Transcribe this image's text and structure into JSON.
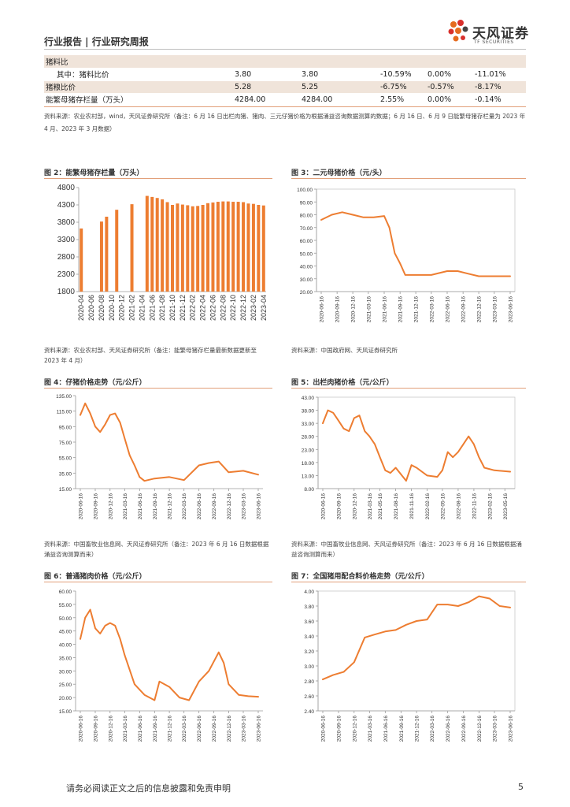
{
  "header": {
    "title": "行业报告 | 行业研究周报"
  },
  "logo": {
    "cn": "天风证券",
    "en": "TF SECURITIES",
    "colors": [
      "#e56b1f",
      "#d9302c",
      "#444444"
    ]
  },
  "table": {
    "rows": [
      [
        "猪料比",
        "",
        "",
        "",
        "",
        ""
      ],
      [
        "其中：猪料比价",
        "3.80",
        "3.80",
        "-10.59%",
        "0.00%",
        "-11.01%"
      ],
      [
        "猪粮比价",
        "5.28",
        "5.25",
        "-6.75%",
        "-0.57%",
        "-8.17%"
      ],
      [
        "能繁母猪存栏量（万头）",
        "4284.00",
        "4284.00",
        "2.55%",
        "0.00%",
        "-0.14%"
      ]
    ],
    "source": "资料来源：农业农村部，wind，天风证券研究所（备注：6 月 16 日出栏肉猪、猪肉、三元仔猪价格为根据涌益咨询数据测算的数据；6 月 16 日、6 月 9 日能繁母猪存栏量为 2023 年 4 月、2023 年 3 月数据）"
  },
  "figures": {
    "fig2": {
      "title": "图 2：能繁母猪存栏量（万头）",
      "source": "资料来源：农业农村部、天风证券研究所（备注：能繁母猪存栏量最新数据更新至 2023 年 4 月）"
    },
    "fig3": {
      "title": "图 3：二元母猪价格（元/头）",
      "source": "资料来源：中国政府网、天风证券研究所"
    },
    "fig4": {
      "title": "图 4：仔猪价格走势（元/公斤）",
      "source": "资料来源：中国畜牧业信息网、天风证券研究所（备注：2023 年 6 月 16 日数据根据涌益咨询测算而来）"
    },
    "fig5": {
      "title": "图 5：出栏肉猪价格（元/公斤）",
      "source": "资料来源：中国畜牧业信息网、天风证券研究所（备注：2023 年 6 月 16 日数据根据涌益咨询测算而来）"
    },
    "fig6": {
      "title": "图 6：普通猪肉价格（元/公斤）",
      "source": ""
    },
    "fig7": {
      "title": "图 7：全国猪用配合料价格走势（元/公斤）",
      "source": ""
    }
  },
  "footer": {
    "disclaimer": "请务必阅读正文之后的信息披露和免责申明",
    "page": "5"
  },
  "chart_data": [
    {
      "id": "fig2",
      "type": "bar",
      "color": "#ed7d31",
      "ylim": [
        1800,
        4800
      ],
      "yticks": [
        1800,
        2300,
        2800,
        3300,
        3800,
        4300,
        4800
      ],
      "categories": [
        "2020-04",
        "2020-05",
        "2020-06",
        "2020-07",
        "2020-08",
        "2020-09",
        "2020-10",
        "2020-11",
        "2020-12",
        "2021-01",
        "2021-02",
        "2021-03",
        "2021-04",
        "2021-05",
        "2021-06",
        "2021-07",
        "2021-08",
        "2021-09",
        "2021-10",
        "2021-11",
        "2021-12",
        "2022-01",
        "2022-02",
        "2022-03",
        "2022-04",
        "2022-05",
        "2022-06",
        "2022-07",
        "2022-08",
        "2022-09",
        "2022-10",
        "2022-11",
        "2022-12",
        "2023-01",
        "2023-02",
        "2023-03",
        "2023-04"
      ],
      "values": [
        3620,
        null,
        null,
        null,
        3820,
        3960,
        null,
        4160,
        null,
        null,
        4320,
        null,
        null,
        4560,
        4530,
        4500,
        4460,
        4380,
        4300,
        4340,
        4310,
        4290,
        4260,
        4270,
        4300,
        4350,
        4370,
        4390,
        4400,
        4400,
        4390,
        4390,
        4380,
        4340,
        4330,
        4300,
        4284
      ],
      "xticklabels": [
        "2020-04",
        "2020-06",
        "2020-08",
        "2020-10",
        "2020-12",
        "2021-02",
        "2021-04",
        "2021-06",
        "2021-08",
        "2021-10",
        "2021-12",
        "2022-02",
        "2022-04",
        "2022-06",
        "2022-08",
        "2022-10",
        "2022-12",
        "2023-02",
        "2023-04"
      ]
    },
    {
      "id": "fig3",
      "type": "line",
      "color": "#ed7d31",
      "ylim": [
        20,
        100
      ],
      "yticks": [
        "20.00",
        "30.00",
        "40.00",
        "50.00",
        "60.00",
        "70.00",
        "80.00",
        "90.00",
        "100.00"
      ],
      "x": [
        "2020-06-16",
        "2020-08-16",
        "2020-10-16",
        "2020-12-16",
        "2021-02-16",
        "2021-04-16",
        "2021-06-16",
        "2021-07-16",
        "2021-08-16",
        "2021-09-16",
        "2021-10-16",
        "2021-12-16",
        "2022-03-16",
        "2022-06-16",
        "2022-08-16",
        "2022-10-16",
        "2022-12-16",
        "2023-03-16",
        "2023-06-16"
      ],
      "y": [
        76,
        80,
        82,
        80,
        78,
        78,
        79,
        70,
        50,
        42,
        33,
        33,
        33,
        36,
        36,
        34,
        32,
        32,
        32
      ],
      "xticklabels": [
        "2020-06-16",
        "2020-09-16",
        "2020-12-16",
        "2021-03-16",
        "2021-06-16",
        "2021-09-16",
        "2021-12-16",
        "2022-03-16",
        "2022-06-16",
        "2022-09-16",
        "2022-12-16",
        "2023-03-16",
        "2023-06-16"
      ]
    },
    {
      "id": "fig4",
      "type": "line",
      "color": "#ed7d31",
      "ylim": [
        15,
        135
      ],
      "yticks": [
        "15.00",
        "35.00",
        "55.00",
        "75.00",
        "95.00",
        "115.00",
        "135.00"
      ],
      "x": [
        "2020-06-16",
        "2020-07-16",
        "2020-08-16",
        "2020-09-16",
        "2020-10-16",
        "2020-11-16",
        "2020-12-16",
        "2021-01-16",
        "2021-02-16",
        "2021-03-16",
        "2021-04-16",
        "2021-05-16",
        "2021-06-16",
        "2021-07-16",
        "2021-09-16",
        "2021-12-16",
        "2022-03-16",
        "2022-06-16",
        "2022-08-16",
        "2022-10-16",
        "2022-12-16",
        "2023-03-16",
        "2023-06-16"
      ],
      "y": [
        110,
        125,
        112,
        95,
        88,
        98,
        110,
        112,
        100,
        80,
        58,
        45,
        30,
        25,
        28,
        30,
        26,
        45,
        48,
        50,
        36,
        38,
        33
      ],
      "xticklabels": [
        "2020-06-16",
        "2020-09-16",
        "2020-12-16",
        "2021-03-16",
        "2021-06-16",
        "2021-09-16",
        "2021-12-16",
        "2022-03-16",
        "2022-06-16",
        "2022-09-16",
        "2022-12-16",
        "2023-03-16",
        "2023-06-16"
      ]
    },
    {
      "id": "fig5",
      "type": "line",
      "color": "#ed7d31",
      "ylim": [
        8,
        43
      ],
      "yticks": [
        "8.00",
        "13.00",
        "18.00",
        "23.00",
        "28.00",
        "33.00",
        "38.00",
        "43.00"
      ],
      "x": [
        "2020-06-16",
        "2020-07-16",
        "2020-08-16",
        "2020-09-16",
        "2020-10-16",
        "2020-11-16",
        "2020-12-16",
        "2021-01-16",
        "2021-02-16",
        "2021-03-16",
        "2021-04-16",
        "2021-05-16",
        "2021-06-16",
        "2021-07-16",
        "2021-08-16",
        "2021-10-16",
        "2021-11-16",
        "2021-12-16",
        "2022-02-16",
        "2022-04-16",
        "2022-05-16",
        "2022-06-16",
        "2022-07-16",
        "2022-08-16",
        "2022-10-16",
        "2022-11-16",
        "2022-12-16",
        "2023-01-16",
        "2023-03-16",
        "2023-06-16"
      ],
      "y": [
        33,
        38,
        37,
        34,
        31,
        30,
        35,
        36,
        30,
        28,
        25,
        20,
        15,
        14,
        16,
        11,
        17,
        16,
        13,
        12.5,
        15,
        22,
        20,
        22,
        28,
        25,
        20,
        16,
        15,
        14.5
      ],
      "xticklabels": [
        "2020-06-16",
        "2020-09-16",
        "2020-12-16",
        "2021-03-16",
        "2021-05-16",
        "2021-08-16",
        "2021-11-16",
        "2022-02-16",
        "2022-05-16",
        "2022-08-16",
        "2022-11-16",
        "2023-02-16",
        "2023-05-16"
      ]
    },
    {
      "id": "fig6",
      "type": "line",
      "color": "#ed7d31",
      "ylim": [
        15,
        60
      ],
      "yticks": [
        "15.00",
        "20.00",
        "25.00",
        "30.00",
        "35.00",
        "40.00",
        "45.00",
        "50.00",
        "55.00",
        "60.00"
      ],
      "x": [
        "2020-06-16",
        "2020-07-16",
        "2020-08-16",
        "2020-09-16",
        "2020-10-16",
        "2020-11-16",
        "2020-12-16",
        "2021-01-16",
        "2021-02-16",
        "2021-03-16",
        "2021-05-16",
        "2021-07-16",
        "2021-09-16",
        "2021-10-16",
        "2021-12-16",
        "2022-02-16",
        "2022-04-16",
        "2022-06-16",
        "2022-08-16",
        "2022-10-16",
        "2022-11-16",
        "2022-12-16",
        "2023-02-16",
        "2023-04-16",
        "2023-06-16"
      ],
      "y": [
        42,
        50,
        53,
        46,
        44,
        47,
        48,
        47,
        42,
        36,
        25,
        21,
        19,
        26,
        24,
        20,
        19,
        26,
        30,
        37,
        33,
        25,
        21,
        20.5,
        20.3
      ],
      "xticklabels": [
        "2020-06-16",
        "2020-09-16",
        "2020-12-16",
        "2021-03-16",
        "2021-06-16",
        "2021-09-16",
        "2021-12-16",
        "2022-03-16",
        "2022-06-16",
        "2022-09-16",
        "2022-12-16",
        "2023-03-16",
        "2023-06-16"
      ]
    },
    {
      "id": "fig7",
      "type": "line",
      "color": "#ed7d31",
      "ylim": [
        2.4,
        4.0
      ],
      "yticks": [
        "2.40",
        "2.60",
        "2.80",
        "3.00",
        "3.20",
        "3.40",
        "3.60",
        "3.80",
        "4.00"
      ],
      "x": [
        "2020-06-16",
        "2020-08-16",
        "2020-10-16",
        "2020-12-16",
        "2021-02-16",
        "2021-04-16",
        "2021-06-16",
        "2021-08-16",
        "2021-10-16",
        "2021-12-16",
        "2022-02-16",
        "2022-04-16",
        "2022-06-16",
        "2022-08-16",
        "2022-10-16",
        "2022-12-16",
        "2023-02-16",
        "2023-04-16",
        "2023-06-16"
      ],
      "y": [
        2.82,
        2.88,
        2.92,
        3.05,
        3.38,
        3.42,
        3.46,
        3.48,
        3.55,
        3.6,
        3.62,
        3.82,
        3.82,
        3.8,
        3.85,
        3.93,
        3.9,
        3.8,
        3.78
      ],
      "xticklabels": [
        "2020-06-16",
        "2020-09-16",
        "2020-12-16",
        "2021-03-16",
        "2021-06-16",
        "2021-09-16",
        "2021-12-16",
        "2022-03-16",
        "2022-06-16",
        "2022-09-16",
        "2022-12-16",
        "2023-03-16",
        "2023-06-16"
      ]
    }
  ]
}
